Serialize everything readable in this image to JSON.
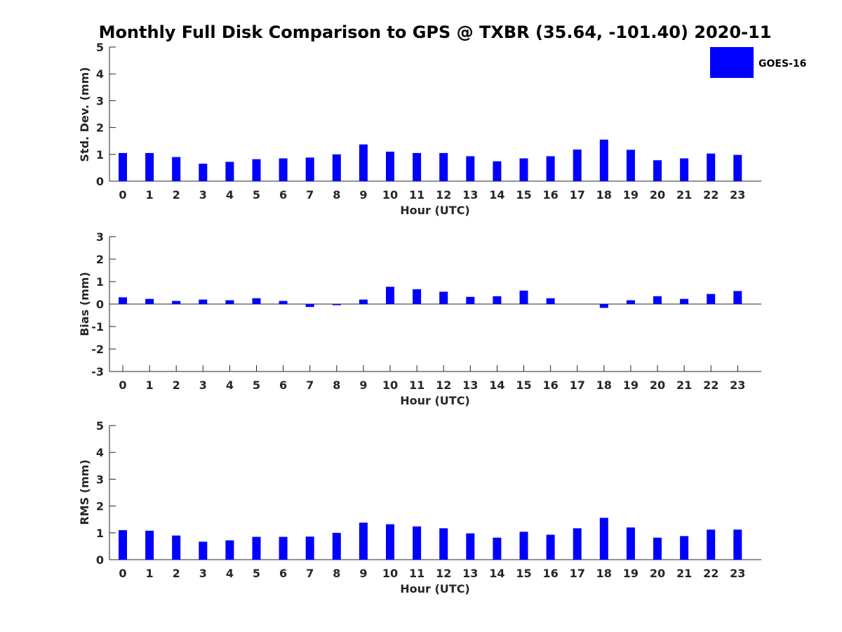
{
  "title": "Monthly Full Disk Comparison to GPS @ TXBR (35.64, -101.40) 2020-11",
  "legend": {
    "label": "GOES-16",
    "color": "#0000ff"
  },
  "series_color": "#0000ff",
  "chart_data": [
    {
      "type": "bar",
      "id": "std",
      "ylabel": "Std. Dev. (mm)",
      "xlabel": "Hour (UTC)",
      "ylim": [
        0,
        5
      ],
      "yticks": [
        0,
        1,
        2,
        3,
        4,
        5
      ],
      "categories": [
        "0",
        "1",
        "2",
        "3",
        "4",
        "5",
        "6",
        "7",
        "8",
        "9",
        "10",
        "11",
        "12",
        "13",
        "14",
        "15",
        "16",
        "17",
        "18",
        "19",
        "20",
        "21",
        "22",
        "23"
      ],
      "series": [
        {
          "name": "GOES-16",
          "values": [
            1.05,
            1.05,
            0.9,
            0.65,
            0.72,
            0.82,
            0.85,
            0.88,
            1.0,
            1.37,
            1.1,
            1.05,
            1.05,
            0.93,
            0.74,
            0.85,
            0.93,
            1.18,
            1.55,
            1.17,
            0.78,
            0.85,
            1.03,
            0.98
          ]
        }
      ]
    },
    {
      "type": "bar",
      "id": "bias",
      "ylabel": "Bias (mm)",
      "xlabel": "Hour (UTC)",
      "ylim": [
        -3,
        3
      ],
      "yticks": [
        -3,
        -2,
        -1,
        0,
        1,
        2,
        3
      ],
      "categories": [
        "0",
        "1",
        "2",
        "3",
        "4",
        "5",
        "6",
        "7",
        "8",
        "9",
        "10",
        "11",
        "12",
        "13",
        "14",
        "15",
        "16",
        "17",
        "18",
        "19",
        "20",
        "21",
        "22",
        "23"
      ],
      "series": [
        {
          "name": "GOES-16",
          "values": [
            0.3,
            0.23,
            0.14,
            0.2,
            0.17,
            0.26,
            0.14,
            -0.13,
            -0.05,
            0.2,
            0.77,
            0.66,
            0.55,
            0.32,
            0.35,
            0.6,
            0.26,
            0.0,
            -0.17,
            0.17,
            0.35,
            0.23,
            0.45,
            0.58
          ]
        }
      ]
    },
    {
      "type": "bar",
      "id": "rms",
      "ylabel": "RMS (mm)",
      "xlabel": "Hour (UTC)",
      "ylim": [
        0,
        5
      ],
      "yticks": [
        0,
        1,
        2,
        3,
        4,
        5
      ],
      "categories": [
        "0",
        "1",
        "2",
        "3",
        "4",
        "5",
        "6",
        "7",
        "8",
        "9",
        "10",
        "11",
        "12",
        "13",
        "14",
        "15",
        "16",
        "17",
        "18",
        "19",
        "20",
        "21",
        "22",
        "23"
      ],
      "series": [
        {
          "name": "GOES-16",
          "values": [
            1.1,
            1.08,
            0.9,
            0.67,
            0.72,
            0.85,
            0.85,
            0.86,
            1.0,
            1.38,
            1.32,
            1.24,
            1.17,
            0.98,
            0.82,
            1.04,
            0.93,
            1.17,
            1.56,
            1.2,
            0.82,
            0.88,
            1.12,
            1.12
          ]
        }
      ]
    }
  ]
}
